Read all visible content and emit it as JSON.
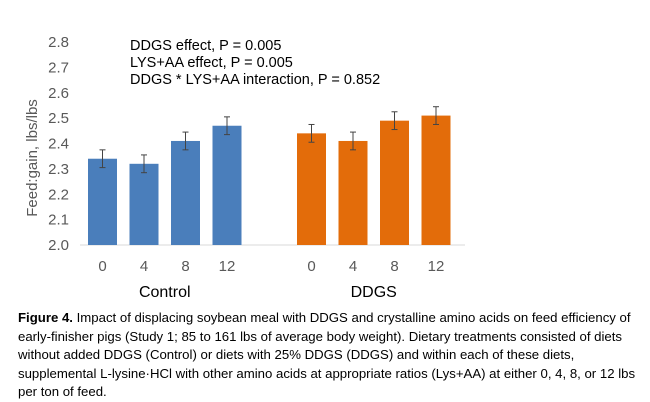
{
  "chart_data": {
    "type": "bar",
    "title": "",
    "ylabel": "Feed:gain, lbs/lbs",
    "ylim": [
      2.0,
      2.8
    ],
    "yticks": [
      "2.0",
      "2.1",
      "2.2",
      "2.3",
      "2.4",
      "2.5",
      "2.6",
      "2.7",
      "2.8"
    ],
    "grid": false,
    "annotations": [
      "DDGS effect, P = 0.005",
      "LYS+AA effect, P = 0.005",
      "DDGS * LYS+AA interaction, P = 0.852"
    ],
    "groups": [
      {
        "name": "Control",
        "color": "#4a7ebb",
        "categories": [
          "0",
          "4",
          "8",
          "12"
        ],
        "values": [
          2.34,
          2.32,
          2.41,
          2.47
        ],
        "errors": [
          0.035,
          0.035,
          0.035,
          0.035
        ]
      },
      {
        "name": "DDGS",
        "color": "#e36c0a",
        "categories": [
          "0",
          "4",
          "8",
          "12"
        ],
        "values": [
          2.44,
          2.41,
          2.49,
          2.51
        ],
        "errors": [
          0.035,
          0.035,
          0.035,
          0.035
        ]
      }
    ]
  },
  "caption": {
    "label": "Figure 4.",
    "text": " Impact of displacing soybean meal with DDGS and crystalline amino acids on feed efficiency of early-finisher pigs (Study 1; 85 to 161 lbs of average body weight). Dietary treatments consisted of diets without added DDGS (Control) or diets with 25% DDGS (DDGS) and within each of these diets, supplemental L-lysine·HCl with other amino acids at appropriate ratios (Lys+AA) at either 0, 4, 8, or 12 lbs per ton of feed."
  }
}
